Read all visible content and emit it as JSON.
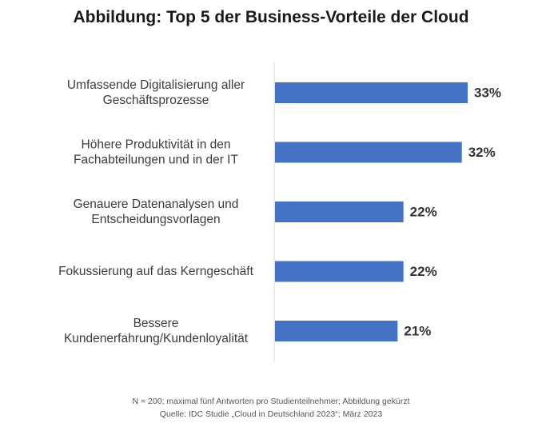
{
  "title": "Abbildung: Top 5 der Business-Vorteile der Cloud",
  "footnotes": {
    "note": "N = 200; maximal fünf Antworten pro Studienteilnehmer; Abbildung gekürzt",
    "source": "Quelle: IDC Studie „Cloud in Deutschland 2023“; März 2023"
  },
  "colors": {
    "bar": "#4472c4",
    "axis": "#d9d9d9"
  },
  "chart_data": {
    "type": "bar",
    "orientation": "horizontal",
    "title": "Abbildung: Top 5 der Business-Vorteile der Cloud",
    "categories": [
      [
        "Umfassende Digitalisierung aller",
        "Geschäftsprozesse"
      ],
      [
        "Höhere Produktivität in den",
        "Fachabteilungen und in der IT"
      ],
      [
        "Genauere Datenanalysen und",
        "Entscheidungsvorlagen"
      ],
      [
        "Fokussierung auf das Kerngeschäft"
      ],
      [
        "Bessere",
        "Kundenerfahrung/Kundenloyalität"
      ]
    ],
    "values": [
      33,
      32,
      22,
      22,
      21
    ],
    "value_labels": [
      "33%",
      "32%",
      "22%",
      "22%",
      "21%"
    ],
    "unit": "%",
    "xlim": [
      0,
      33
    ],
    "grid": false,
    "legend": "none"
  }
}
